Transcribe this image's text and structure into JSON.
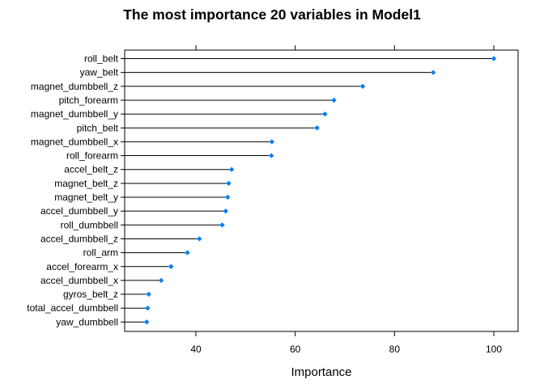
{
  "chart_data": {
    "type": "dotplot",
    "title": "The most importance 20 variables in Model1",
    "xlabel": "Importance",
    "ylabel": "",
    "xlim": [
      25,
      105
    ],
    "xticks": [
      40,
      60,
      80,
      100
    ],
    "top_ticks": true,
    "grid": false,
    "point_color": "#0080ff",
    "line_color": "#000000",
    "categories": [
      "roll_belt",
      "yaw_belt",
      "magnet_dumbbell_z",
      "pitch_forearm",
      "magnet_dumbbell_y",
      "pitch_belt",
      "magnet_dumbbell_x",
      "roll_forearm",
      "accel_belt_z",
      "magnet_belt_z",
      "magnet_belt_y",
      "accel_dumbbell_y",
      "roll_dumbbell",
      "accel_dumbbell_z",
      "roll_arm",
      "accel_forearm_x",
      "accel_dumbbell_x",
      "gyros_belt_z",
      "total_accel_dumbbell",
      "yaw_dumbbell"
    ],
    "values": [
      100,
      87.8,
      73.6,
      67.8,
      66.0,
      64.4,
      55.3,
      55.2,
      47.2,
      46.6,
      46.4,
      46.0,
      45.3,
      40.7,
      38.3,
      35.0,
      33.0,
      30.5,
      30.3,
      30.1
    ]
  }
}
